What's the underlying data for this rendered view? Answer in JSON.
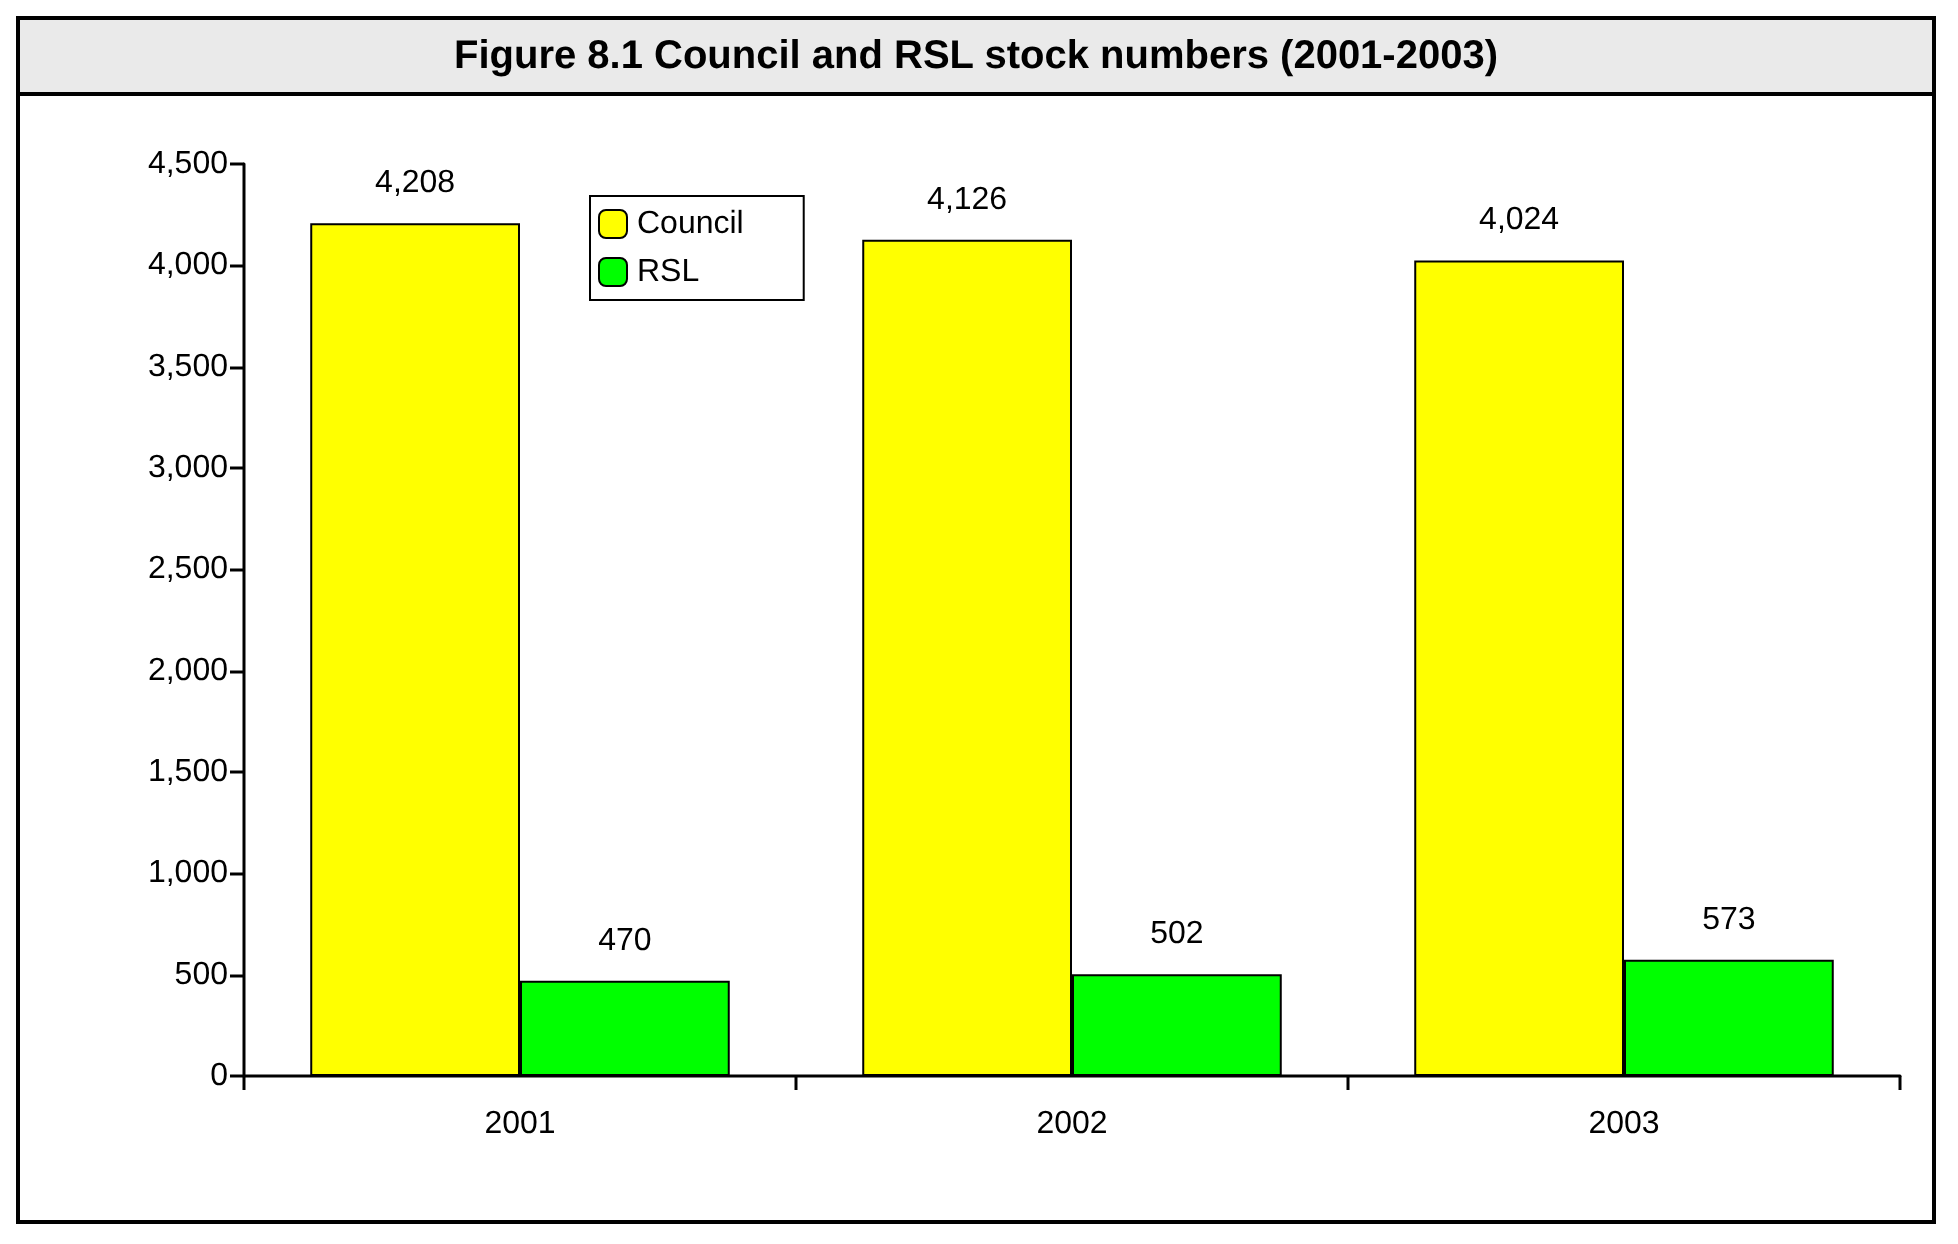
{
  "chart_data": {
    "type": "bar",
    "title": "Figure 8.1 Council and RSL stock numbers (2001-2003)",
    "categories": [
      "2001",
      "2002",
      "2003"
    ],
    "series": [
      {
        "name": "Council",
        "color": "#ffff00",
        "values": [
          4208,
          4126,
          4024
        ],
        "value_labels": [
          "4,208",
          "4,126",
          "4,024"
        ]
      },
      {
        "name": "RSL",
        "color": "#00ff00",
        "values": [
          470,
          502,
          573
        ],
        "value_labels": [
          "470",
          "502",
          "573"
        ]
      }
    ],
    "ylim": [
      0,
      4500
    ],
    "yticks": [
      0,
      500,
      {
        "value": 1000,
        "label": "1,000"
      },
      {
        "value": 1500,
        "label": "1,500"
      },
      {
        "value": 2000,
        "label": "2,000"
      },
      {
        "value": 2500,
        "label": "2,500"
      },
      {
        "value": 3000,
        "label": "3,000"
      },
      {
        "value": 3500,
        "label": "3,500"
      },
      {
        "value": 4000,
        "label": "4,000"
      },
      {
        "value": 4500,
        "label": "4,500"
      }
    ],
    "grid": false,
    "legend": "top left"
  }
}
